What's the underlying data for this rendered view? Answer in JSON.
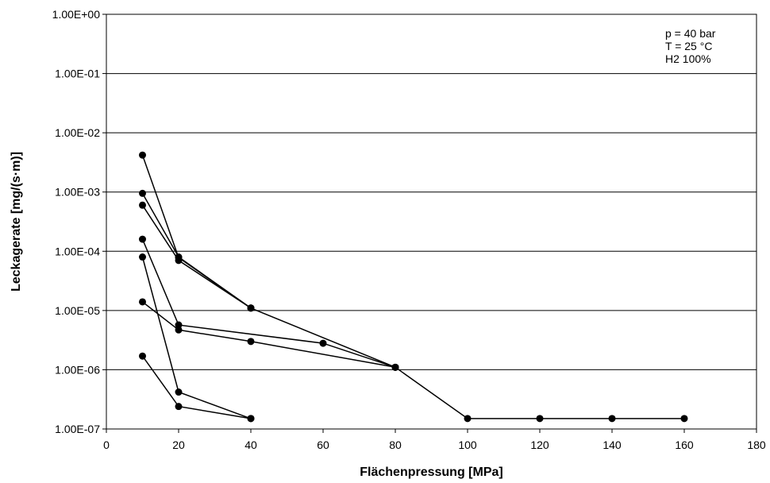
{
  "chart_data": {
    "type": "scatter",
    "xlabel": "Flächenpressung [MPa]",
    "ylabel": "Leckagerate [mg/(s·m)]",
    "xlim": [
      0,
      180
    ],
    "ylim": [
      1e-07,
      1
    ],
    "yscale": "log",
    "grid": "horizontal major",
    "x_ticks": [
      0,
      20,
      40,
      60,
      80,
      100,
      120,
      140,
      160,
      180
    ],
    "x_tick_labels": [
      "0",
      "20",
      "40",
      "60",
      "80",
      "100",
      "120",
      "140",
      "160",
      "180"
    ],
    "y_tick_labels": [
      "1.00E-07",
      "1.00E-06",
      "1.00E-05",
      "1.00E-04",
      "1.00E-03",
      "1.00E-02",
      "1.00E-01",
      "1.00E+00"
    ],
    "annotations": [
      "p = 40 bar",
      "T = 25 °C",
      "H2 100%"
    ],
    "marker_color": "#000000",
    "line_color": "#000000",
    "series": [
      {
        "x": [
          10,
          20,
          40,
          80,
          100,
          120,
          140,
          160
        ],
        "y": [
          0.0042,
          7.8e-05,
          1.1e-05,
          1.1e-06,
          1.5e-07,
          1.5e-07,
          1.5e-07,
          1.5e-07
        ]
      },
      {
        "x": [
          10,
          20,
          40
        ],
        "y": [
          0.00095,
          8e-05,
          1.1e-05
        ]
      },
      {
        "x": [
          10,
          20,
          40
        ],
        "y": [
          0.0006,
          7e-05,
          1.1e-05
        ]
      },
      {
        "x": [
          10,
          20,
          60,
          80
        ],
        "y": [
          0.00016,
          5.7e-06,
          2.8e-06,
          1.1e-06
        ]
      },
      {
        "x": [
          10,
          20,
          40
        ],
        "y": [
          8e-05,
          4.2e-07,
          1.5e-07
        ]
      },
      {
        "x": [
          10,
          20,
          40,
          80
        ],
        "y": [
          1.4e-05,
          4.7e-06,
          3e-06,
          1.1e-06
        ]
      },
      {
        "x": [
          10,
          20,
          40
        ],
        "y": [
          1.7e-06,
          2.4e-07,
          1.5e-07
        ]
      }
    ]
  }
}
